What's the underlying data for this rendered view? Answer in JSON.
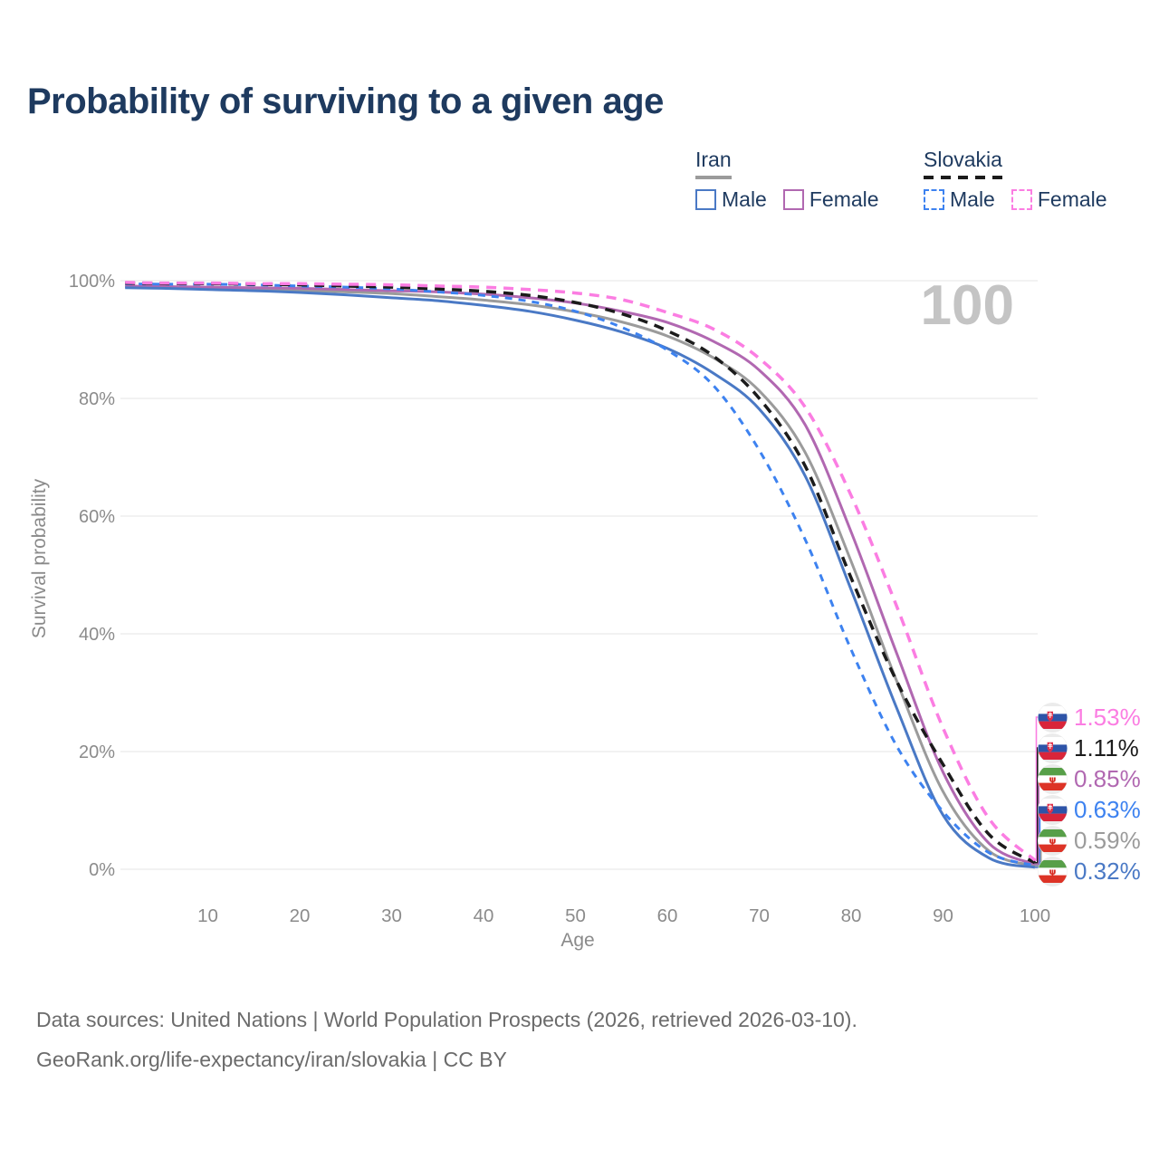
{
  "title": "Probability of surviving to a given age",
  "watermark": "100",
  "legend": {
    "groups": [
      {
        "name": "Iran",
        "line_style": "solid",
        "underline_color": "#9b9b9b",
        "items": [
          {
            "label": "Male",
            "color": "#4a79c5",
            "dashed": false
          },
          {
            "label": "Female",
            "color": "#b168b1",
            "dashed": false
          }
        ]
      },
      {
        "name": "Slovakia",
        "line_style": "dashed",
        "underline_color": "#1b1b1b",
        "items": [
          {
            "label": "Male",
            "color": "#3d82f0",
            "dashed": true
          },
          {
            "label": "Female",
            "color": "#fb7de2",
            "dashed": true
          }
        ]
      }
    ]
  },
  "chart_data": {
    "type": "line",
    "xlabel": "Age",
    "ylabel": "Survival probability",
    "xlim": [
      0,
      100
    ],
    "ylim": [
      0,
      100
    ],
    "x_ticks": [
      10,
      20,
      30,
      40,
      50,
      60,
      70,
      80,
      90,
      100
    ],
    "y_ticks": [
      0,
      20,
      40,
      60,
      80,
      100
    ],
    "y_tick_suffix": "%",
    "grid": "horizontal",
    "legend_position": "top-right",
    "x": [
      1,
      5,
      10,
      15,
      20,
      25,
      30,
      35,
      40,
      45,
      50,
      55,
      60,
      65,
      70,
      75,
      80,
      85,
      90,
      95,
      100
    ],
    "series": [
      {
        "id": "iran-total",
        "name": "Iran",
        "country": "Iran",
        "sex": "Both",
        "flag": "iran",
        "color": "#9b9b9b",
        "dash": "none",
        "values": [
          99.0,
          98.8,
          98.7,
          98.5,
          98.3,
          98.1,
          97.8,
          97.3,
          96.7,
          95.9,
          94.7,
          93.0,
          90.6,
          86.9,
          81.3,
          70.8,
          52.3,
          31.8,
          13.2,
          3.1,
          0.59
        ],
        "end_label": "0.59%",
        "end_value": 0.59
      },
      {
        "id": "iran-female",
        "name": "Iran Female",
        "country": "Iran",
        "sex": "Female",
        "flag": "iran",
        "color": "#b168b1",
        "dash": "none",
        "values": [
          99.1,
          99.0,
          98.9,
          98.8,
          98.7,
          98.5,
          98.3,
          98.1,
          97.7,
          97.1,
          96.2,
          94.8,
          92.9,
          89.7,
          84.8,
          75.5,
          57.3,
          36.5,
          16.5,
          4.4,
          0.85
        ],
        "end_label": "0.85%",
        "end_value": 0.85
      },
      {
        "id": "iran-male",
        "name": "Iran Male",
        "country": "Iran",
        "sex": "Male",
        "flag": "iran",
        "color": "#4a79c5",
        "dash": "none",
        "values": [
          98.8,
          98.7,
          98.5,
          98.3,
          98.0,
          97.6,
          97.1,
          96.6,
          95.8,
          94.8,
          93.3,
          91.3,
          88.5,
          84.3,
          78.2,
          66.8,
          47.5,
          27.2,
          9.2,
          1.9,
          0.32
        ],
        "end_label": "0.32%",
        "end_value": 0.32
      },
      {
        "id": "slovakia-male",
        "name": "Slovakia Male",
        "country": "Slovakia",
        "sex": "Male",
        "flag": "slovakia",
        "color": "#3d82f0",
        "dash": "med",
        "values": [
          99.5,
          99.4,
          99.4,
          99.3,
          99.1,
          98.9,
          98.6,
          98.1,
          97.5,
          96.5,
          94.8,
          92.1,
          88.2,
          82.2,
          71.2,
          56.0,
          37.3,
          20.8,
          9.8,
          2.8,
          0.63
        ],
        "end_label": "0.63%",
        "end_value": 0.63
      },
      {
        "id": "slovakia-total",
        "name": "Slovakia",
        "country": "Slovakia",
        "sex": "Both",
        "flag": "slovakia",
        "color": "#1b1b1b",
        "dash": "long",
        "values": [
          99.6,
          99.5,
          99.5,
          99.4,
          99.3,
          99.1,
          98.9,
          98.6,
          98.2,
          97.5,
          96.3,
          94.4,
          91.5,
          87.2,
          80.0,
          68.5,
          49.5,
          31.8,
          17.8,
          5.9,
          1.11
        ],
        "end_label": "1.11%",
        "end_value": 1.11
      },
      {
        "id": "slovakia-female",
        "name": "Slovakia Female",
        "country": "Slovakia",
        "sex": "Female",
        "flag": "slovakia",
        "color": "#fb7de2",
        "dash": "long",
        "values": [
          99.7,
          99.6,
          99.6,
          99.5,
          99.5,
          99.4,
          99.3,
          99.1,
          98.9,
          98.5,
          97.9,
          96.8,
          94.6,
          91.8,
          86.8,
          78.5,
          63.5,
          44.5,
          24.0,
          8.6,
          1.53
        ],
        "end_label": "1.53%",
        "end_value": 1.53
      }
    ]
  },
  "footer": {
    "line1": "Data sources: United Nations | World Population Prospects (2026, retrieved 2026-03-10).",
    "line2": "GeoRank.org/life-expectancy/iran/slovakia | CC BY"
  }
}
